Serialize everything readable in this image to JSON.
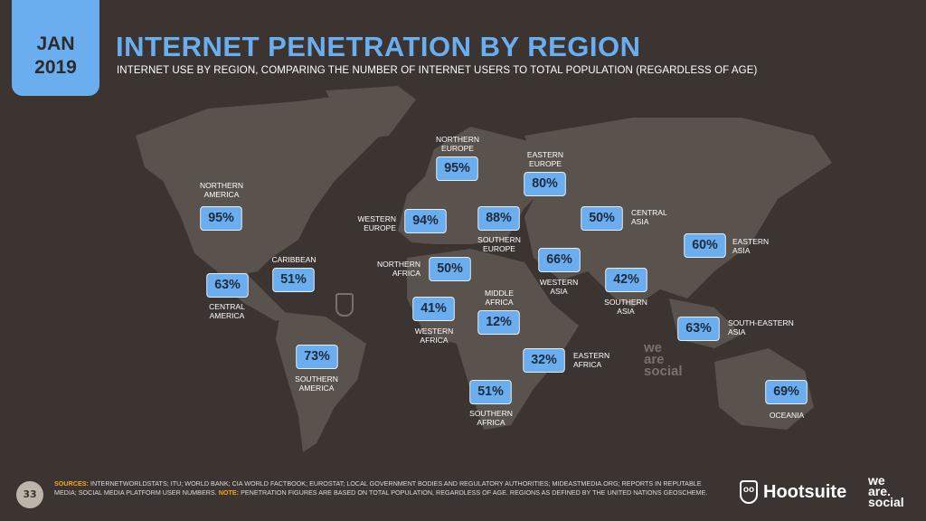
{
  "header": {
    "date_month": "JAN",
    "date_year": "2019",
    "title": "INTERNET PENETRATION BY REGION",
    "subtitle": "INTERNET USE BY REGION, COMPARING THE NUMBER OF INTERNET USERS TO TOTAL POPULATION (REGARDLESS OF AGE)"
  },
  "colors": {
    "background": "#3b3430",
    "accent": "#6aaef0",
    "land": "#5a524c",
    "note": "#f5a623"
  },
  "regions": [
    {
      "name": "NORTHERN\nAMERICA",
      "value": "95%"
    },
    {
      "name": "CARIBBEAN",
      "value": "51%"
    },
    {
      "name": "CENTRAL\nAMERICA",
      "value": "63%"
    },
    {
      "name": "SOUTHERN\nAMERICA",
      "value": "73%"
    },
    {
      "name": "NORTHERN\nEUROPE",
      "value": "95%"
    },
    {
      "name": "WESTERN\nEUROPE",
      "value": "94%"
    },
    {
      "name": "SOUTHERN\nEUROPE",
      "value": "88%"
    },
    {
      "name": "EASTERN\nEUROPE",
      "value": "80%"
    },
    {
      "name": "NORTHERN\nAFRICA",
      "value": "50%"
    },
    {
      "name": "WESTERN\nAFRICA",
      "value": "41%"
    },
    {
      "name": "MIDDLE\nAFRICA",
      "value": "12%"
    },
    {
      "name": "EASTERN\nAFRICA",
      "value": "32%"
    },
    {
      "name": "SOUTHERN\nAFRICA",
      "value": "51%"
    },
    {
      "name": "WESTERN\nASIA",
      "value": "66%"
    },
    {
      "name": "CENTRAL\nASIA",
      "value": "50%"
    },
    {
      "name": "SOUTHERN\nASIA",
      "value": "42%"
    },
    {
      "name": "EASTERN\nASIA",
      "value": "60%"
    },
    {
      "name": "SOUTH-EASTERN\nASIA",
      "value": "63%"
    },
    {
      "name": "OCEANIA",
      "value": "69%"
    }
  ],
  "footer": {
    "page_number": "33",
    "sources_label": "SOURCES:",
    "sources_text": " INTERNETWORLDSTATS; ITU; WORLD BANK; CIA WORLD FACTBOOK; EUROSTAT; LOCAL GOVERNMENT BODIES AND REGULATORY AUTHORITIES; MIDEASTMEDIA.ORG; REPORTS IN REPUTABLE MEDIA; SOCIAL MEDIA PLATFORM USER NUMBERS. ",
    "note_label": "NOTE:",
    "note_text": " PENETRATION FIGURES ARE BASED ON TOTAL POPULATION, REGARDLESS OF AGE. REGIONS AS DEFINED BY THE UNITED NATIONS GEOSCHEME.",
    "hootsuite": "Hootsuite",
    "we_are_social": "we\nare.\nsocial"
  },
  "watermark": "we\nare\nsocial"
}
